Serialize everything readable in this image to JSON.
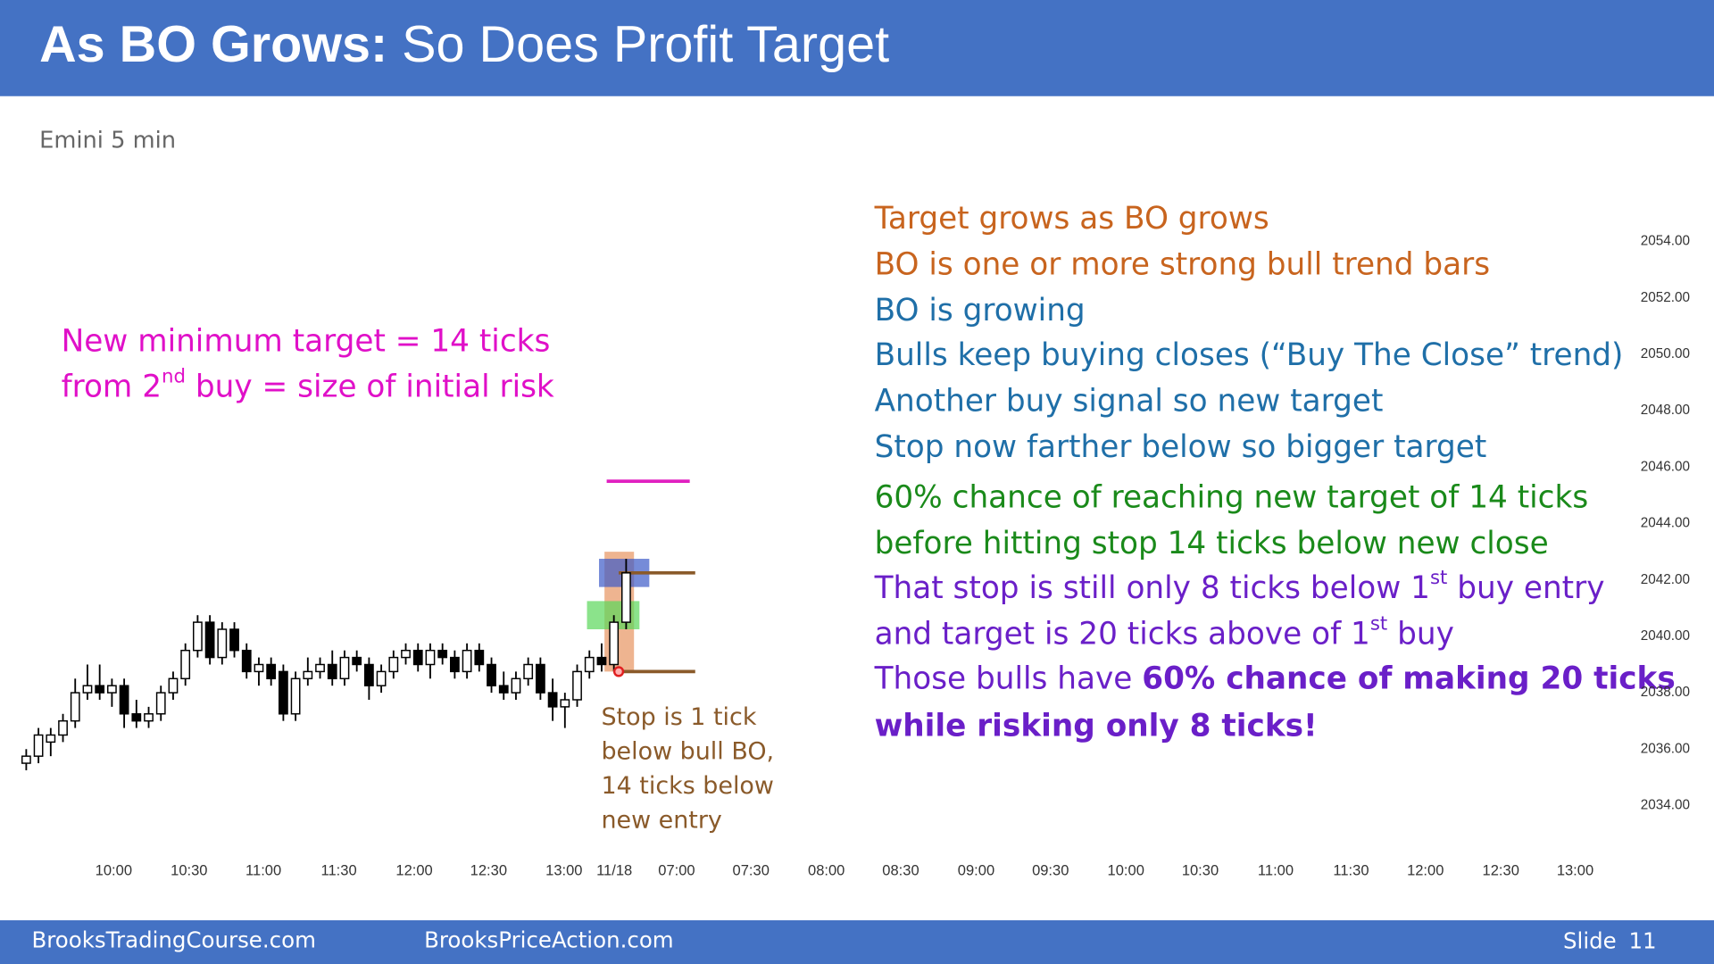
{
  "header": {
    "title_bold": "As BO Grows:",
    "title_rest": " So Does Profit Target"
  },
  "subtitle": "Emini 5 min",
  "left_note": {
    "color": "#e010c8",
    "lines": [
      [
        {
          "text": "New minimum target = 14 ticks"
        }
      ],
      [
        {
          "text": "from 2"
        },
        {
          "text": "nd",
          "sup": true
        },
        {
          "text": " buy = size of initial risk"
        }
      ]
    ]
  },
  "right_notes": [
    {
      "color": "#c8641e",
      "parts": [
        {
          "text": "Target grows as BO grows"
        }
      ]
    },
    {
      "color": "#c8641e",
      "parts": [
        {
          "text": "BO is one or more strong bull trend bars"
        }
      ]
    },
    {
      "color": "#1f6fa8",
      "parts": [
        {
          "text": "BO is growing"
        }
      ]
    },
    {
      "color": "#1f6fa8",
      "parts": [
        {
          "text": "Bulls keep buying closes (“Buy The Close” trend)"
        }
      ]
    },
    {
      "color": "#1f6fa8",
      "parts": [
        {
          "text": "Another buy signal so new target"
        }
      ]
    },
    {
      "color": "#1f6fa8",
      "parts": [
        {
          "text": "Stop now farther below so bigger target"
        }
      ]
    },
    {
      "color": "#1a8a1a",
      "parts": [
        {
          "text": "60% chance of reaching new target of 14 ticks"
        }
      ]
    },
    {
      "color": "#1a8a1a",
      "parts": [
        {
          "text": "before hitting stop 14 ticks below new close"
        }
      ]
    },
    {
      "color": "#6a1fc8",
      "parts": [
        {
          "text": "That stop is still only 8 ticks below 1"
        },
        {
          "text": "st",
          "sup": true
        },
        {
          "text": " buy entry"
        }
      ]
    },
    {
      "color": "#6a1fc8",
      "parts": [
        {
          "text": "and target is 20 ticks above of 1"
        },
        {
          "text": "st",
          "sup": true
        },
        {
          "text": " buy"
        }
      ]
    },
    {
      "color": "#6a1fc8",
      "parts": [
        {
          "text": "Those bulls have "
        },
        {
          "text": "60% chance of making 20 ticks",
          "bold": true
        }
      ]
    },
    {
      "color": "#6a1fc8",
      "parts": [
        {
          "text": "while risking only 8 ticks!",
          "bold": true
        }
      ]
    }
  ],
  "stop_note": {
    "color": "#8a5a2a",
    "lines": [
      "Stop is 1 tick",
      "below bull BO,",
      "14 ticks below",
      "new entry"
    ]
  },
  "footer": {
    "left": "BrooksTradingCourse.com",
    "center": "BrooksPriceAction.com",
    "slide_label": "Slide",
    "slide_number": "11"
  },
  "chart_data": {
    "type": "candlestick",
    "categories": [
      "10:00",
      "10:30",
      "11:00",
      "11:30",
      "12:00",
      "12:30",
      "13:00",
      "11/18",
      "07:00",
      "07:30",
      "08:00",
      "08:30",
      "09:00",
      "09:30",
      "10:00",
      "10:30",
      "11:00",
      "11:30",
      "12:00",
      "12:30",
      "13:00"
    ],
    "ylim": [
      2032.5,
      2056.5
    ],
    "yticks": [
      {
        "value": 2034,
        "label": "2034.00"
      },
      {
        "value": 2036,
        "label": "2036.00"
      },
      {
        "value": 2038,
        "label": "2038.00"
      },
      {
        "value": 2040,
        "label": "2040.00"
      },
      {
        "value": 2042,
        "label": "2042.00"
      },
      {
        "value": 2044,
        "label": "2044.00"
      },
      {
        "value": 2046,
        "label": "2046.00"
      },
      {
        "value": 2048,
        "label": "2048.00"
      },
      {
        "value": 2050,
        "label": "2050.00"
      },
      {
        "value": 2052,
        "label": "2052.00"
      },
      {
        "value": 2054,
        "label": "2054.00"
      }
    ],
    "open": [
      2035.5,
      2035.75,
      2036.25,
      2036.5,
      2037.0,
      2038.0,
      2038.25,
      2038.0,
      2038.25,
      2037.25,
      2037.0,
      2037.25,
      2038.0,
      2038.5,
      2039.5,
      2040.5,
      2039.25,
      2040.25,
      2039.5,
      2038.75,
      2039.0,
      2038.75,
      2037.25,
      2038.5,
      2038.75,
      2039.0,
      2038.5,
      2039.25,
      2039.0,
      2038.25,
      2038.75,
      2039.25,
      2039.5,
      2039.0,
      2039.5,
      2039.25,
      2038.75,
      2039.5,
      2039.0,
      2038.25,
      2038.0,
      2038.5,
      2039.0,
      2038.0,
      2037.5,
      2037.75,
      2038.75,
      2039.25,
      2039.0,
      2040.5
    ],
    "high": [
      2036.0,
      2036.75,
      2036.75,
      2037.25,
      2038.5,
      2039.0,
      2039.0,
      2038.5,
      2038.5,
      2037.75,
      2037.5,
      2038.25,
      2038.75,
      2039.75,
      2040.75,
      2040.75,
      2040.5,
      2040.5,
      2039.75,
      2039.25,
      2039.25,
      2039.0,
      2038.75,
      2039.25,
      2039.25,
      2039.5,
      2039.5,
      2039.5,
      2039.25,
      2039.0,
      2039.5,
      2039.75,
      2039.75,
      2039.75,
      2039.75,
      2039.5,
      2039.75,
      2039.75,
      2039.25,
      2038.75,
      2038.75,
      2039.25,
      2039.25,
      2038.5,
      2038.0,
      2039.0,
      2039.5,
      2039.75,
      2040.75,
      2042.75
    ],
    "low": [
      2035.25,
      2035.5,
      2035.75,
      2036.25,
      2036.75,
      2037.75,
      2037.75,
      2037.5,
      2036.75,
      2036.75,
      2036.75,
      2037.0,
      2037.75,
      2038.25,
      2039.25,
      2039.0,
      2039.0,
      2039.25,
      2038.5,
      2038.25,
      2038.25,
      2037.0,
      2037.0,
      2038.25,
      2038.5,
      2038.25,
      2038.25,
      2038.75,
      2037.75,
      2038.0,
      2038.5,
      2039.0,
      2038.75,
      2038.5,
      2039.0,
      2038.5,
      2038.5,
      2038.75,
      2038.0,
      2037.75,
      2037.75,
      2038.25,
      2037.75,
      2037.0,
      2036.75,
      2037.5,
      2038.5,
      2038.75,
      2038.75,
      2040.25
    ],
    "close": [
      2035.75,
      2036.5,
      2036.5,
      2037.0,
      2038.0,
      2038.25,
      2038.0,
      2038.25,
      2037.25,
      2037.0,
      2037.25,
      2038.0,
      2038.5,
      2039.5,
      2040.5,
      2039.25,
      2040.25,
      2039.5,
      2038.75,
      2039.0,
      2038.5,
      2037.25,
      2038.5,
      2038.75,
      2039.0,
      2038.5,
      2039.25,
      2039.0,
      2038.25,
      2038.75,
      2039.25,
      2039.5,
      2039.0,
      2039.5,
      2039.25,
      2038.75,
      2039.5,
      2039.0,
      2038.25,
      2038.0,
      2038.5,
      2039.0,
      2038.0,
      2037.5,
      2037.75,
      2038.75,
      2039.25,
      2039.0,
      2040.5,
      2042.25
    ],
    "zones": [
      {
        "low": 2038.75,
        "high": 2043.0,
        "color": "rgba(226,130,70,0.6)"
      },
      {
        "low": 2041.75,
        "high": 2042.75,
        "color": "rgba(60,90,200,0.7)"
      },
      {
        "low": 2040.25,
        "high": 2041.25,
        "color": "rgba(90,215,90,0.7)"
      }
    ],
    "levels": [
      {
        "value": 2045.5,
        "color": "#e020c0"
      },
      {
        "value": 2042.25,
        "color": "#8a5a2a"
      },
      {
        "value": 2038.75,
        "color": "#8a5a2a"
      }
    ],
    "stop_marker": {
      "value": 2038.75,
      "color": "#e02020"
    }
  }
}
